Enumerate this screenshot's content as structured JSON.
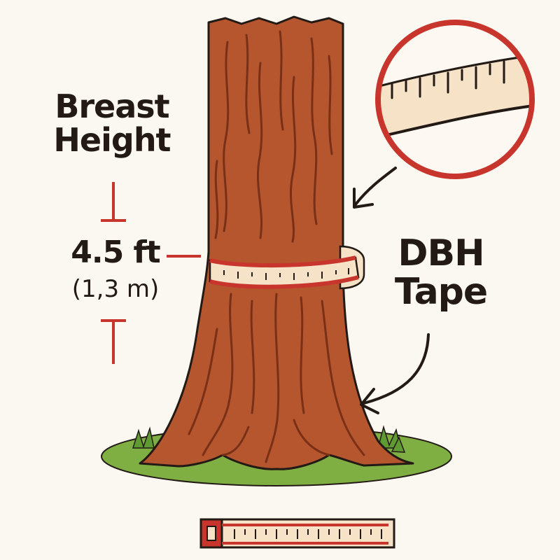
{
  "labels": {
    "breast_line1": "Breast",
    "breast_line2": "Height",
    "height_value": "4.5 ft",
    "height_metric": "(1,3 m)",
    "tape_line1": "DBH",
    "tape_line2": "Tape"
  },
  "colors": {
    "background": "#fbf8f1",
    "bark": "#b5562f",
    "bark_dark": "#7a3016",
    "tape": "#f6e2c6",
    "tape_trim": "#c8352c",
    "marker_red": "#c8352c",
    "grass": "#7fae42",
    "outline": "#231a16"
  },
  "icons": {
    "magnifier": "zoom-circle",
    "arrows": "curved-arrow"
  }
}
